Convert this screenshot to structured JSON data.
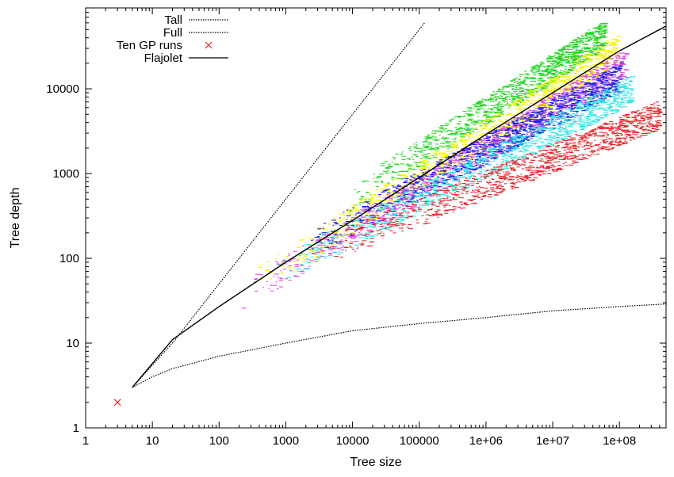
{
  "chart_data": {
    "type": "scatter",
    "title": "",
    "xlabel": "Tree size",
    "ylabel": "Tree depth",
    "xscale": "log",
    "yscale": "log",
    "xlim": [
      1,
      500000000
    ],
    "ylim": [
      1,
      90000
    ],
    "grid": false,
    "legend_position": "top-left",
    "x_ticks": [
      {
        "value": 1,
        "label": "1"
      },
      {
        "value": 10,
        "label": "10"
      },
      {
        "value": 100,
        "label": "100"
      },
      {
        "value": 1000,
        "label": "1000"
      },
      {
        "value": 10000,
        "label": "10000"
      },
      {
        "value": 100000,
        "label": "100000"
      },
      {
        "value": 1000000,
        "label": "1e+06"
      },
      {
        "value": 10000000,
        "label": "1e+07"
      },
      {
        "value": 100000000,
        "label": "1e+08"
      }
    ],
    "y_ticks": [
      {
        "value": 1,
        "label": "1"
      },
      {
        "value": 10,
        "label": "10"
      },
      {
        "value": 100,
        "label": "100"
      },
      {
        "value": 1000,
        "label": "1000"
      },
      {
        "value": 10000,
        "label": "10000"
      }
    ],
    "series": [
      {
        "name": "Tall",
        "kind": "line",
        "dash": "dotted",
        "color": "#000000",
        "x": [
          5,
          20,
          100,
          1000,
          10000,
          50000,
          100000,
          122000
        ],
        "y": [
          3,
          10,
          50,
          500,
          5000,
          25000,
          50000,
          61000
        ]
      },
      {
        "name": "Full",
        "kind": "line",
        "dash": "dotted",
        "color": "#000000",
        "x": [
          5,
          10,
          20,
          100,
          1000,
          10000,
          100000,
          1000000,
          10000000,
          100000000,
          500000000
        ],
        "y": [
          3,
          4,
          5,
          7,
          10,
          14,
          17,
          20,
          24,
          27,
          29
        ]
      },
      {
        "name": "Ten GP runs",
        "kind": "scatter",
        "marker": "x",
        "color": "#e8232b",
        "x": [
          3
        ],
        "y": [
          2
        ]
      },
      {
        "name": "Flajolet",
        "kind": "line",
        "dash": "solid",
        "color": "#000000",
        "x": [
          5,
          20,
          100,
          1000,
          10000,
          100000,
          1000000,
          10000000,
          100000000,
          500000000
        ],
        "y": [
          3,
          11,
          27,
          90,
          280,
          900,
          2900,
          9000,
          28000,
          55000
        ]
      }
    ],
    "gp_run_bands": [
      {
        "color": "#22d622",
        "x_from": 8000,
        "x_to": 60000000,
        "y_at_start": 500,
        "y_at_end": 45000
      },
      {
        "color": "#f5f500",
        "x_from": 300,
        "x_to": 90000000,
        "y_at_start": 50,
        "y_at_end": 30000
      },
      {
        "color": "#e04be0",
        "x_from": 200,
        "x_to": 120000000,
        "y_at_start": 35,
        "y_at_end": 20000
      },
      {
        "color": "#1f1fe6",
        "x_from": 2000,
        "x_to": 100000000,
        "y_at_start": 140,
        "y_at_end": 14000
      },
      {
        "color": "#33e6e6",
        "x_from": 500,
        "x_to": 150000000,
        "y_at_start": 60,
        "y_at_end": 10000
      },
      {
        "color": "#e8232b",
        "x_from": 3000,
        "x_to": 400000000,
        "y_at_start": 120,
        "y_at_end": 5000
      }
    ]
  }
}
